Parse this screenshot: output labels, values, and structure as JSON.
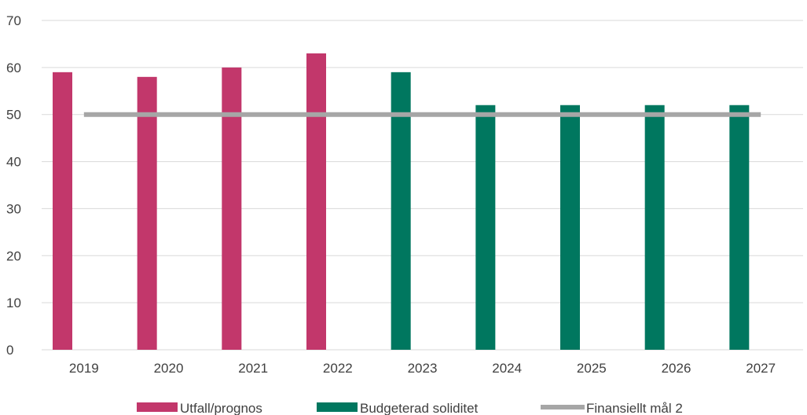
{
  "chart_data": {
    "type": "bar",
    "categories": [
      "2019",
      "2020",
      "2021",
      "2022",
      "2023",
      "2024",
      "2025",
      "2026",
      "2027"
    ],
    "series": [
      {
        "name": "Utfall/prognos",
        "type": "bar",
        "color": "#c2376b",
        "values": [
          59,
          58,
          60,
          63,
          null,
          null,
          null,
          null,
          null
        ]
      },
      {
        "name": "Budgeterad soliditet",
        "type": "bar",
        "color": "#00775f",
        "values": [
          null,
          null,
          null,
          null,
          59,
          52,
          52,
          52,
          52
        ]
      },
      {
        "name": "Finansiellt mål 2",
        "type": "line",
        "color": "#a6a6a6",
        "values": [
          50,
          50,
          50,
          50,
          50,
          50,
          50,
          50,
          50
        ]
      }
    ],
    "yticks": [
      "0",
      "10",
      "20",
      "30",
      "40",
      "50",
      "60",
      "70"
    ],
    "ylim": [
      0,
      70
    ],
    "grid": true,
    "legend_position": "bottom"
  }
}
